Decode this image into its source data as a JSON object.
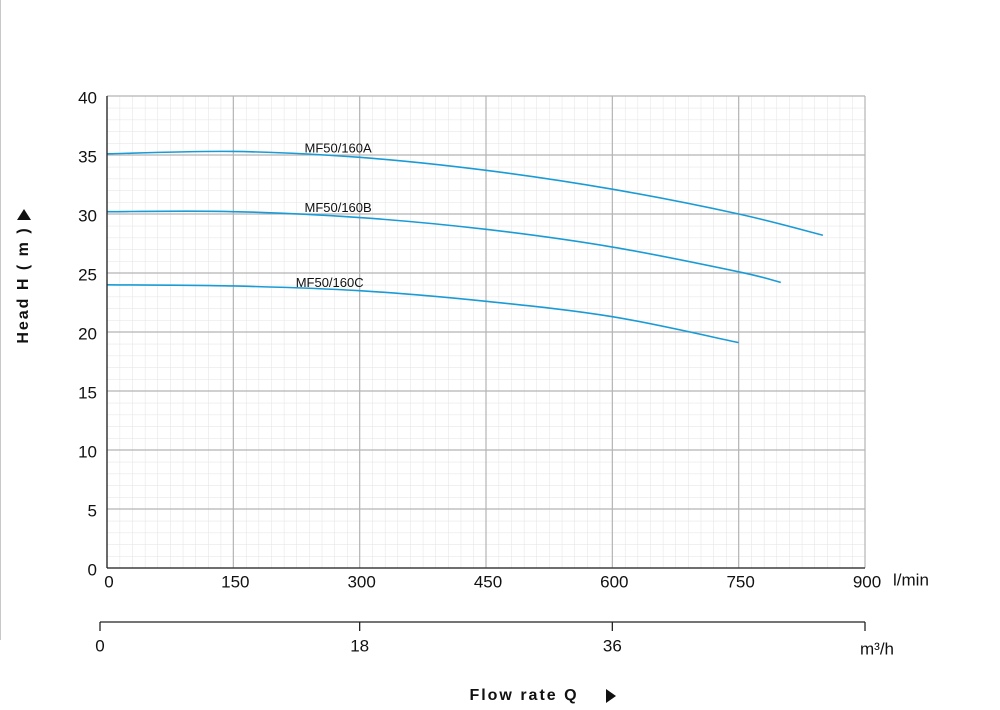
{
  "chart_data": {
    "type": "line",
    "x_label": "Flow rate Q",
    "y_label": "Head H ( m )",
    "x_unit": "l/min",
    "x2_unit": "m³/h",
    "xlim": [
      0,
      900
    ],
    "xticks": [
      0,
      150,
      300,
      450,
      600,
      750,
      900
    ],
    "x2lim": [
      0,
      54
    ],
    "x2ticks": [
      0,
      18,
      36
    ],
    "ylim": [
      0,
      40
    ],
    "yticks": [
      0,
      5,
      10,
      15,
      20,
      25,
      30,
      35,
      40
    ],
    "grid": true,
    "series": [
      {
        "name": "MF50/160A",
        "color": "#1a9bd6",
        "x": [
          0,
          150,
          300,
          450,
          600,
          750,
          850
        ],
        "values": [
          35.1,
          35.3,
          34.8,
          33.7,
          32.1,
          30.0,
          28.2
        ]
      },
      {
        "name": "MF50/160B",
        "color": "#1a9bd6",
        "x": [
          0,
          150,
          300,
          450,
          600,
          750,
          800
        ],
        "values": [
          30.2,
          30.2,
          29.7,
          28.7,
          27.2,
          25.1,
          24.2
        ]
      },
      {
        "name": "MF50/160C",
        "color": "#1a9bd6",
        "x": [
          0,
          150,
          300,
          450,
          600,
          750
        ],
        "values": [
          24.0,
          23.9,
          23.5,
          22.6,
          21.3,
          19.1
        ]
      }
    ]
  }
}
